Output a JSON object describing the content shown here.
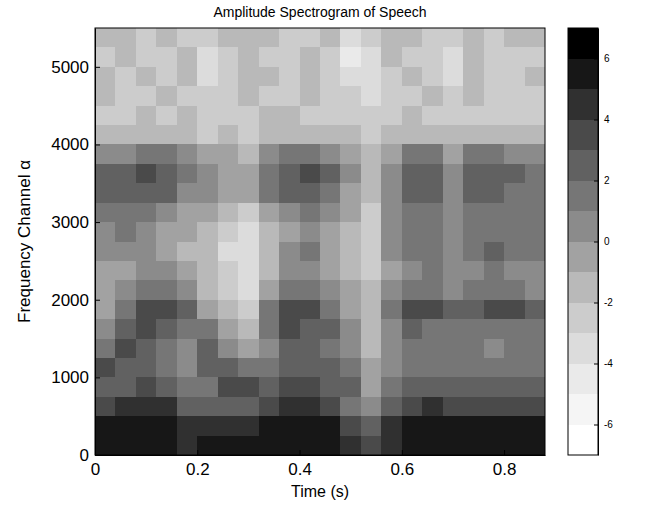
{
  "chart_data": {
    "type": "heatmap",
    "title": "Amplitude Spectrogram of Speech",
    "x_label": "Time (s)",
    "y_label": "Frequency Channel α",
    "xlim": [
      0,
      0.88
    ],
    "ylim": [
      0,
      5500
    ],
    "xticks": [
      0,
      0.2,
      0.4,
      0.6,
      0.8
    ],
    "yticks": [
      0,
      1000,
      2000,
      3000,
      4000,
      5000
    ],
    "x": [
      0,
      0.04,
      0.08,
      0.12,
      0.16,
      0.2,
      0.24,
      0.28,
      0.32,
      0.36,
      0.4,
      0.44,
      0.48,
      0.52,
      0.56,
      0.6,
      0.64,
      0.68,
      0.72,
      0.76,
      0.8,
      0.84,
      0.88
    ],
    "y": [
      0,
      250,
      500,
      750,
      1000,
      1250,
      1500,
      1750,
      2000,
      2250,
      2500,
      2750,
      3000,
      3250,
      3500,
      3750,
      4000,
      4250,
      4500,
      4750,
      5000,
      5250,
      5500
    ],
    "z": [
      [
        5,
        5,
        5,
        5,
        4,
        5,
        5,
        5,
        5,
        5,
        5,
        5,
        4,
        3,
        4,
        5,
        5,
        5,
        5,
        5,
        5,
        5
      ],
      [
        5,
        5,
        5,
        5,
        4,
        4,
        4,
        4,
        5,
        5,
        5,
        5,
        3,
        2,
        4,
        5,
        5,
        5,
        5,
        5,
        5,
        5
      ],
      [
        3,
        4,
        4,
        4,
        2,
        2,
        2,
        2,
        3,
        4,
        4,
        3,
        1,
        0,
        2,
        3,
        4,
        3,
        3,
        3,
        3,
        3
      ],
      [
        2,
        2,
        3,
        2,
        1,
        1,
        3,
        3,
        2,
        3,
        3,
        2,
        2,
        -1,
        1,
        2,
        2,
        2,
        2,
        2,
        2,
        2
      ],
      [
        3,
        2,
        2,
        1,
        0,
        2,
        2,
        1,
        1,
        2,
        2,
        2,
        1,
        -1,
        0,
        1,
        1,
        1,
        1,
        1,
        1,
        1
      ],
      [
        1,
        3,
        2,
        1,
        0,
        2,
        0,
        -1,
        0,
        2,
        2,
        1,
        0,
        -2,
        0,
        1,
        1,
        1,
        1,
        0,
        1,
        1
      ],
      [
        0,
        2,
        3,
        2,
        1,
        1,
        -1,
        -2,
        1,
        3,
        2,
        2,
        0,
        -2,
        0,
        2,
        1,
        1,
        1,
        1,
        1,
        1
      ],
      [
        -1,
        1,
        3,
        3,
        2,
        -1,
        -2,
        -3,
        1,
        3,
        3,
        1,
        -1,
        -2,
        1,
        3,
        3,
        2,
        2,
        3,
        3,
        2
      ],
      [
        -1,
        0,
        1,
        1,
        0,
        -2,
        -3,
        -4,
        -1,
        1,
        1,
        0,
        -1,
        -2,
        0,
        1,
        1,
        0,
        1,
        1,
        1,
        0
      ],
      [
        -1,
        -1,
        0,
        0,
        -1,
        -2,
        -3,
        -4,
        -2,
        0,
        0,
        -1,
        -2,
        -3,
        -1,
        0,
        1,
        0,
        0,
        1,
        0,
        0
      ],
      [
        0,
        0,
        0,
        -1,
        -2,
        -2,
        -4,
        -4,
        -2,
        0,
        1,
        -1,
        -2,
        -3,
        0,
        1,
        1,
        0,
        1,
        2,
        1,
        1
      ],
      [
        0,
        1,
        0,
        -1,
        -1,
        -2,
        -3,
        -4,
        -2,
        -1,
        0,
        -1,
        -2,
        -3,
        0,
        1,
        1,
        0,
        1,
        1,
        1,
        1
      ],
      [
        1,
        1,
        1,
        0,
        -1,
        -1,
        -2,
        -3,
        -1,
        0,
        1,
        0,
        -1,
        -3,
        0,
        1,
        1,
        0,
        1,
        1,
        1,
        1
      ],
      [
        2,
        2,
        2,
        2,
        0,
        0,
        -1,
        -1,
        1,
        2,
        2,
        1,
        -1,
        -2,
        0,
        2,
        2,
        0,
        2,
        2,
        1,
        1
      ],
      [
        2,
        2,
        3,
        2,
        1,
        0,
        -1,
        -1,
        1,
        2,
        3,
        2,
        0,
        -2,
        0,
        2,
        2,
        0,
        2,
        2,
        2,
        1
      ],
      [
        0,
        0,
        1,
        1,
        0,
        -1,
        -1,
        -2,
        0,
        1,
        1,
        0,
        -1,
        -2,
        -1,
        1,
        1,
        -1,
        1,
        1,
        0,
        0
      ],
      [
        -2,
        -2,
        -2,
        -2,
        -2,
        -3,
        -2,
        -3,
        -2,
        -2,
        -2,
        -2,
        -2,
        -3,
        -2,
        -2,
        -2,
        -2,
        -2,
        -2,
        -2,
        -2
      ],
      [
        -3,
        -3,
        -2,
        -3,
        -2,
        -3,
        -3,
        -3,
        -2,
        -2,
        -3,
        -3,
        -3,
        -3,
        -3,
        -2,
        -3,
        -3,
        -3,
        -3,
        -3,
        -3
      ],
      [
        -2,
        -3,
        -3,
        -2,
        -3,
        -3,
        -3,
        -2,
        -3,
        -3,
        -2,
        -3,
        -3,
        -4,
        -3,
        -3,
        -2,
        -3,
        -2,
        -3,
        -3,
        -3
      ],
      [
        -2,
        -3,
        -2,
        -3,
        -2,
        -4,
        -3,
        -2,
        -2,
        -3,
        -2,
        -3,
        -4,
        -4,
        -3,
        -2,
        -3,
        -4,
        -2,
        -3,
        -3,
        -2
      ],
      [
        -3,
        -2,
        -3,
        -3,
        -2,
        -4,
        -3,
        -2,
        -3,
        -3,
        -2,
        -3,
        -5,
        -4,
        -2,
        -3,
        -3,
        -4,
        -2,
        -3,
        -3,
        -3
      ],
      [
        -2,
        -2,
        -3,
        -2,
        -3,
        -3,
        -2,
        -2,
        -2,
        -3,
        -3,
        -2,
        -4,
        -3,
        -2,
        -2,
        -3,
        -3,
        -2,
        -3,
        -2,
        -2
      ]
    ],
    "colorbar": {
      "range": [
        -7,
        7
      ],
      "ticks": [
        -6,
        -4,
        -2,
        0,
        2,
        4,
        6
      ]
    }
  }
}
